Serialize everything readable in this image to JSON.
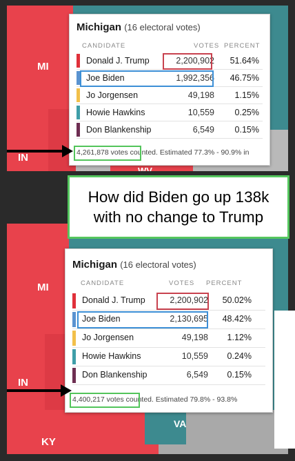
{
  "question_banner": "How did Biden go up 138k with no change to Trump",
  "panels": [
    {
      "state_name": "Michigan",
      "electoral_votes": "(16 electoral votes)",
      "columns": {
        "candidate": "CANDIDATE",
        "votes": "VOTES",
        "percent": "PERCENT"
      },
      "candidates": [
        {
          "name": "Donald J. Trump",
          "votes": "2,200,902",
          "percent": "51.64%",
          "color": "#e0303a"
        },
        {
          "name": "Joe Biden",
          "votes": "1,992,356",
          "percent": "46.75%",
          "color": "#5a93d0"
        },
        {
          "name": "Jo Jorgensen",
          "votes": "49,198",
          "percent": "1.15%",
          "color": "#f2c04a"
        },
        {
          "name": "Howie Hawkins",
          "votes": "10,559",
          "percent": "0.25%",
          "color": "#3f9ea8"
        },
        {
          "name": "Don Blankenship",
          "votes": "6,549",
          "percent": "0.15%",
          "color": "#6e2e52"
        }
      ],
      "total_votes": "4,261,878 votes",
      "footer_rest": " counted. Estimated 77.3% - 90.9% in",
      "map_labels": {
        "mi": "MI",
        "in": "IN",
        "wv": "WV"
      }
    },
    {
      "state_name": "Michigan",
      "electoral_votes": "(16 electoral votes)",
      "columns": {
        "candidate": "CANDIDATE",
        "votes": "VOTES",
        "percent": "PERCENT"
      },
      "candidates": [
        {
          "name": "Donald J. Trump",
          "votes": "2,200,902",
          "percent": "50.02%",
          "color": "#e0303a"
        },
        {
          "name": "Joe Biden",
          "votes": "2,130,695",
          "percent": "48.42%",
          "color": "#5a93d0"
        },
        {
          "name": "Jo Jorgensen",
          "votes": "49,198",
          "percent": "1.12%",
          "color": "#f2c04a"
        },
        {
          "name": "Howie Hawkins",
          "votes": "10,559",
          "percent": "0.24%",
          "color": "#3f9ea8"
        },
        {
          "name": "Don Blankenship",
          "votes": "6,549",
          "percent": "0.15%",
          "color": "#6e2e52"
        }
      ],
      "total_votes": "4,400,217 votes",
      "footer_rest": " counted. Estimated 79.8% - 93.8%",
      "map_labels": {
        "mi": "MI",
        "in": "IN",
        "va": "VA",
        "ky": "KY"
      }
    }
  ],
  "colors": {
    "republican_red": "#e8424c",
    "map_water": "#3d8a8f",
    "highlight_green": "#52c45a"
  }
}
